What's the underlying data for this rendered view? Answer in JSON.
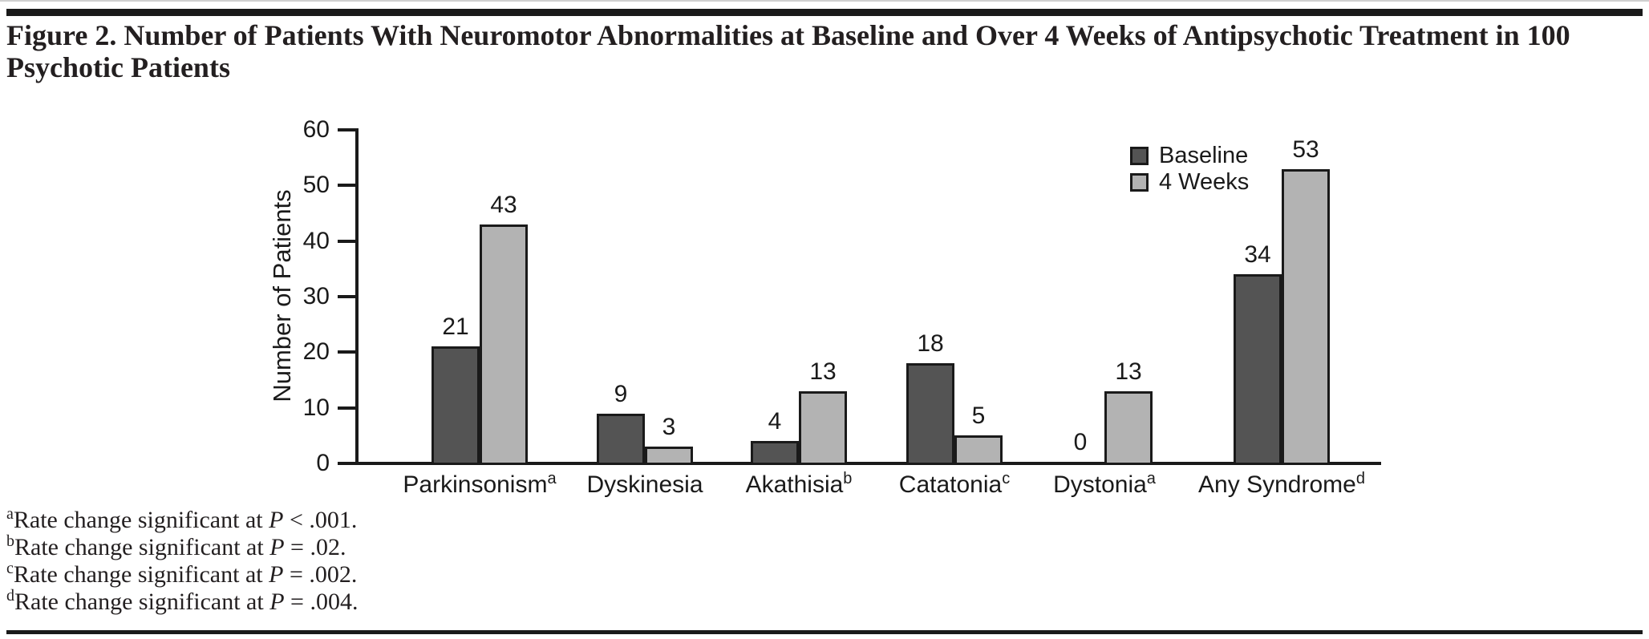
{
  "page": {
    "title_line1": "Figure 2. Number of Patients With Neuromotor Abnormalities at Baseline and Over 4 Weeks of Antipsychotic Treatment in 100",
    "title_line2": "Psychotic Patients"
  },
  "chart_data": {
    "type": "bar",
    "categories": [
      "Parkinsonism",
      "Dyskinesia",
      "Akathisia",
      "Catatonia",
      "Dystonia",
      "Any Syndrome"
    ],
    "category_sups": [
      "a",
      "",
      "b",
      "c",
      "a",
      "d"
    ],
    "series": [
      {
        "name": "Baseline",
        "color": "#545454",
        "values": [
          21,
          9,
          4,
          18,
          0,
          34
        ]
      },
      {
        "name": "4 Weeks",
        "color": "#b3b3b3",
        "values": [
          43,
          3,
          13,
          5,
          13,
          53
        ]
      }
    ],
    "ylabel": "Number of Patients",
    "xlabel": "",
    "ylim": [
      0,
      60
    ],
    "yticks": [
      0,
      10,
      20,
      30,
      40,
      50,
      60
    ],
    "grid": false,
    "legend_position": "upper-right-inside",
    "axis_color": "#1a1a1a",
    "value_labels_shown": true
  },
  "footnotes": [
    {
      "sup": "a",
      "body": "Rate change significant at ",
      "p": "P",
      "tail": " < .001."
    },
    {
      "sup": "b",
      "body": "Rate change significant at ",
      "p": "P",
      "tail": " = .02."
    },
    {
      "sup": "c",
      "body": "Rate change significant at ",
      "p": "P",
      "tail": " = .002."
    },
    {
      "sup": "d",
      "body": "Rate change significant at ",
      "p": "P",
      "tail": " = .004."
    }
  ]
}
